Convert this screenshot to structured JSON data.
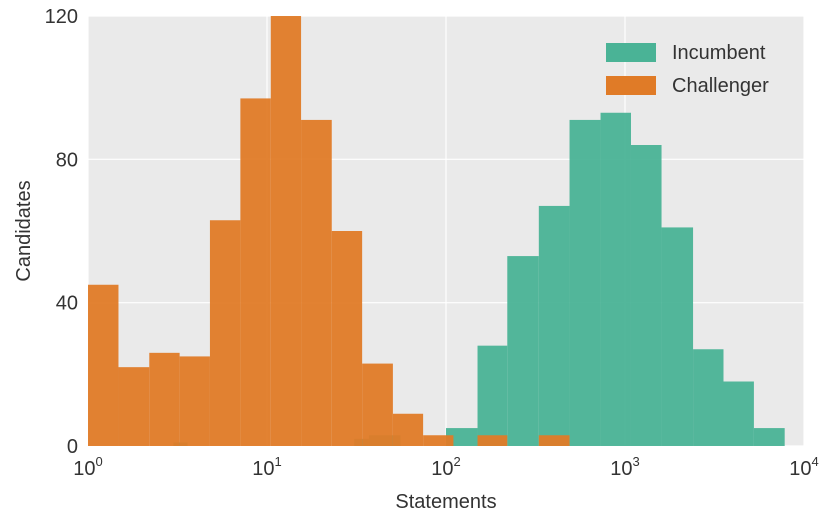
{
  "chart_data": {
    "type": "histogram",
    "xlabel": "Statements",
    "ylabel": "Candidates",
    "xscale": "log",
    "xlim": [
      1,
      10000
    ],
    "ylim": [
      0,
      120
    ],
    "x_ticks": [
      {
        "value": 1,
        "base": "10",
        "exp": "0"
      },
      {
        "value": 10,
        "base": "10",
        "exp": "1"
      },
      {
        "value": 100,
        "base": "10",
        "exp": "2"
      },
      {
        "value": 1000,
        "base": "10",
        "exp": "3"
      },
      {
        "value": 10000,
        "base": "10",
        "exp": "4"
      }
    ],
    "y_ticks": [
      0,
      40,
      80,
      120
    ],
    "grid": true,
    "legend_position": "top-right",
    "series": [
      {
        "name": "Incumbent",
        "color": "#4ab396",
        "bins": [
          {
            "x0": 3.0,
            "x1": 3.6,
            "count": 1
          },
          {
            "x0": 30.7,
            "x1": 37.1,
            "count": 2
          },
          {
            "x0": 37.1,
            "x1": 55.7,
            "count": 3
          },
          {
            "x0": 100,
            "x1": 150,
            "count": 5
          },
          {
            "x0": 150,
            "x1": 220,
            "count": 28
          },
          {
            "x0": 220,
            "x1": 330,
            "count": 53
          },
          {
            "x0": 330,
            "x1": 490,
            "count": 67
          },
          {
            "x0": 490,
            "x1": 730,
            "count": 91
          },
          {
            "x0": 730,
            "x1": 1080,
            "count": 93
          },
          {
            "x0": 1080,
            "x1": 1600,
            "count": 84
          },
          {
            "x0": 1600,
            "x1": 2400,
            "count": 61
          },
          {
            "x0": 2400,
            "x1": 3550,
            "count": 27
          },
          {
            "x0": 3550,
            "x1": 5250,
            "count": 18
          },
          {
            "x0": 5250,
            "x1": 7800,
            "count": 5
          }
        ]
      },
      {
        "name": "Challenger",
        "color": "#e07b27",
        "bins": [
          {
            "x0": 1.0,
            "x1": 1.48,
            "count": 45
          },
          {
            "x0": 1.48,
            "x1": 2.2,
            "count": 22
          },
          {
            "x0": 2.2,
            "x1": 3.25,
            "count": 26
          },
          {
            "x0": 3.25,
            "x1": 4.8,
            "count": 25
          },
          {
            "x0": 4.8,
            "x1": 7.1,
            "count": 63
          },
          {
            "x0": 7.1,
            "x1": 10.5,
            "count": 97
          },
          {
            "x0": 10.5,
            "x1": 15.5,
            "count": 120
          },
          {
            "x0": 15.5,
            "x1": 23.0,
            "count": 91
          },
          {
            "x0": 23.0,
            "x1": 34.0,
            "count": 60
          },
          {
            "x0": 34.0,
            "x1": 50.5,
            "count": 23
          },
          {
            "x0": 50.5,
            "x1": 74.5,
            "count": 9
          },
          {
            "x0": 74.5,
            "x1": 110,
            "count": 3
          },
          {
            "x0": 150,
            "x1": 220,
            "count": 3
          },
          {
            "x0": 330,
            "x1": 490,
            "count": 3
          }
        ]
      }
    ]
  }
}
